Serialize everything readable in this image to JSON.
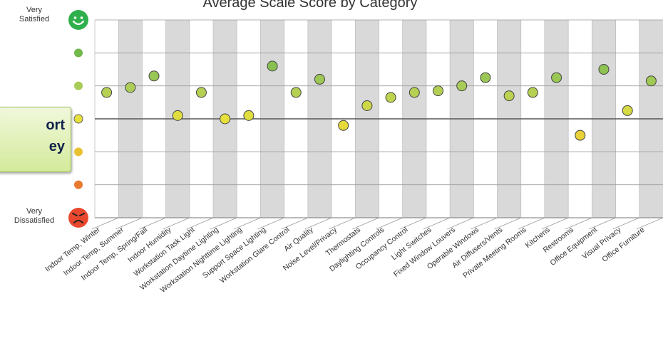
{
  "badge": {
    "line1": "ort",
    "line2": "ey"
  },
  "chart_data": {
    "type": "scatter",
    "title": "Average Scale Score by Category",
    "ylim": [
      1,
      7
    ],
    "y_scale_labels": {
      "top": "Very\nSatisfied",
      "bottom": "Very\nDissatisfied"
    },
    "categories": [
      "Indoor Temp, Winter",
      "Indoor Temp, Summer",
      "Indoor Temp, Spring/Fall",
      "Indoor Humidity",
      "Workstation Task Light",
      "Workstation Daytime Lighting",
      "Workstation Nighttime Lighting",
      "Support Space Lighting",
      "Workstation Glare Control",
      "Air Quality",
      "Noise Level/Privacy",
      "Thermostats",
      "Daylighting Controls",
      "Occupancy Control",
      "Light Switches",
      "Fixed Window Louvers",
      "Operable Windows",
      "Air Diffusers/Vents",
      "Private Meeting Rooms",
      "Kitchens",
      "Restrooms",
      "Office Equipment",
      "Visual Privacy",
      "Office Furniture"
    ],
    "values": [
      4.8,
      4.95,
      5.3,
      4.1,
      4.8,
      4.0,
      4.1,
      5.6,
      4.8,
      5.2,
      3.8,
      4.4,
      4.65,
      4.8,
      4.85,
      5.0,
      5.25,
      4.7,
      4.8,
      5.25,
      3.5,
      5.5,
      4.25,
      5.15
    ],
    "scale_colors": [
      "#e8482e",
      "#e87a30",
      "#e8c232",
      "#e6e03c",
      "#a9cc58",
      "#72b84a",
      "#3dae50"
    ],
    "grid": true,
    "alternating_column_shading": true
  }
}
